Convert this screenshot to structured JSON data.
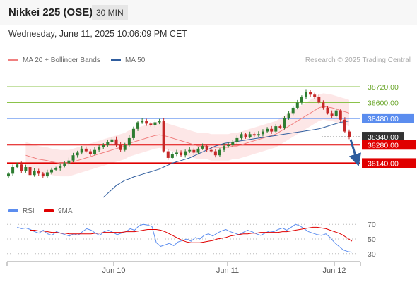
{
  "header": {
    "title": "Nikkei 225 (OSE)",
    "interval": "30 MIN",
    "timestamp": "Wednesday, June 11, 2025 10:06:09 PM CET"
  },
  "credit": "Research © 2025 Trading Central",
  "colors": {
    "bullish": "#2e7d32",
    "bearish": "#c62828",
    "bollinger_fill": "#fde3e3",
    "ma20": "#f08080",
    "ma50": "#2f5d9e",
    "target": "#8bc34a",
    "pivot": "#5b8def",
    "support": "#e00000",
    "last": "#333333",
    "rsi": "#5b8def",
    "rsi_ma": "#e00000"
  },
  "chart_data": [
    {
      "type": "candlestick",
      "title": "Nikkei 225 (OSE)",
      "ylim": [
        37880,
        38870
      ],
      "x_ticks": [
        "Jun 10",
        "Jun 11",
        "Jun 12"
      ],
      "legend": [
        "MA 20 + Bollinger Bands",
        "MA 50"
      ],
      "levels": [
        {
          "value": 38720,
          "label": "38720.00",
          "kind": "resistance"
        },
        {
          "value": 38600,
          "label": "38600.00",
          "kind": "resistance"
        },
        {
          "value": 38480,
          "label": "38480.00",
          "kind": "pivot"
        },
        {
          "value": 38340,
          "label": "38340.00",
          "kind": "last"
        },
        {
          "value": 38280,
          "label": "38280.00",
          "kind": "support"
        },
        {
          "value": 38140,
          "label": "38140.00",
          "kind": "support"
        }
      ],
      "projection": {
        "from": 38320,
        "to": 38140,
        "direction": "down"
      },
      "close": [
        38060,
        38110,
        38130,
        38080,
        38110,
        38050,
        38080,
        38060,
        38040,
        38070,
        38090,
        38100,
        38120,
        38140,
        38160,
        38200,
        38220,
        38250,
        38230,
        38210,
        38240,
        38260,
        38280,
        38300,
        38320,
        38280,
        38240,
        38280,
        38330,
        38400,
        38450,
        38460,
        38440,
        38430,
        38450,
        38460,
        38230,
        38180,
        38210,
        38220,
        38200,
        38230,
        38240,
        38220,
        38250,
        38270,
        38240,
        38230,
        38200,
        38240,
        38270,
        38280,
        38300,
        38330,
        38360,
        38340,
        38360,
        38350,
        38360,
        38380,
        38400,
        38380,
        38420,
        38410,
        38480,
        38520,
        38560,
        38600,
        38640,
        38680,
        38660,
        38640,
        38600,
        38560,
        38520,
        38500,
        38540,
        38470,
        38380,
        38340
      ],
      "ma20": [
        38200,
        38190,
        38180,
        38170,
        38165,
        38160,
        38150,
        38145,
        38140,
        38140,
        38140,
        38150,
        38160,
        38170,
        38180,
        38190,
        38200,
        38210,
        38220,
        38230,
        38240,
        38250,
        38260,
        38270,
        38290,
        38300,
        38310,
        38320,
        38330,
        38340,
        38350,
        38355,
        38350,
        38340,
        38330,
        38320,
        38310,
        38300,
        38290,
        38280,
        38270,
        38270,
        38270,
        38260,
        38260,
        38260,
        38260,
        38260,
        38270,
        38270,
        38280,
        38290,
        38300,
        38310,
        38320,
        38330,
        38340,
        38350,
        38360,
        38380,
        38400,
        38420,
        38440,
        38460,
        38480,
        38500,
        38520,
        38540,
        38560,
        38570,
        38565,
        38560,
        38550,
        38540,
        38530,
        38520
      ],
      "ma50": [
        37880,
        37910,
        37940,
        37970,
        37990,
        38010,
        38020,
        38035,
        38045,
        38055,
        38065,
        38075,
        38085,
        38095,
        38110,
        38125,
        38140,
        38150,
        38160,
        38170,
        38180,
        38195,
        38210,
        38225,
        38240,
        38255,
        38270,
        38280,
        38290,
        38295,
        38300,
        38305,
        38310,
        38315,
        38320,
        38325,
        38330,
        38335,
        38340,
        38345,
        38350,
        38355,
        38360,
        38365,
        38370,
        38375,
        38380,
        38385,
        38390,
        38395,
        38400,
        38410,
        38420,
        38430,
        38440,
        38450,
        38455,
        38460
      ]
    },
    {
      "type": "line",
      "title": "RSI",
      "legend": [
        "RSI",
        "9MA"
      ],
      "ylim": [
        25,
        75
      ],
      "y_ticks": [
        70,
        50,
        30
      ],
      "series": [
        {
          "name": "RSI",
          "values": [
            66,
            64,
            65,
            63,
            60,
            58,
            62,
            57,
            55,
            60,
            58,
            56,
            54,
            57,
            55,
            60,
            64,
            62,
            58,
            55,
            60,
            62,
            59,
            56,
            58,
            60,
            64,
            62,
            68,
            70,
            69,
            67,
            45,
            40,
            42,
            44,
            41,
            46,
            48,
            50,
            47,
            52,
            50,
            55,
            57,
            54,
            58,
            61,
            63,
            60,
            58,
            56,
            59,
            62,
            60,
            57,
            55,
            58,
            61,
            60,
            63,
            65,
            62,
            66,
            70,
            68,
            64,
            60,
            58,
            56,
            55,
            57,
            52,
            45,
            40,
            35,
            33,
            32
          ]
        },
        {
          "name": "9MA",
          "values": [
            62,
            62,
            61,
            61,
            60,
            59,
            59,
            58,
            58,
            57,
            57,
            57,
            57,
            57,
            57,
            58,
            58,
            59,
            59,
            59,
            59,
            59,
            60,
            60,
            60,
            61,
            62,
            63,
            63,
            63,
            62,
            60,
            57,
            54,
            51,
            48,
            46,
            45,
            45,
            45,
            46,
            47,
            48,
            50,
            51,
            52,
            54,
            55,
            56,
            57,
            57,
            58,
            58,
            59,
            59,
            59,
            59,
            59,
            60,
            60,
            61,
            62,
            63,
            64,
            65,
            66,
            66,
            65,
            64,
            62,
            60,
            58,
            55,
            51,
            47
          ]
        }
      ]
    }
  ]
}
